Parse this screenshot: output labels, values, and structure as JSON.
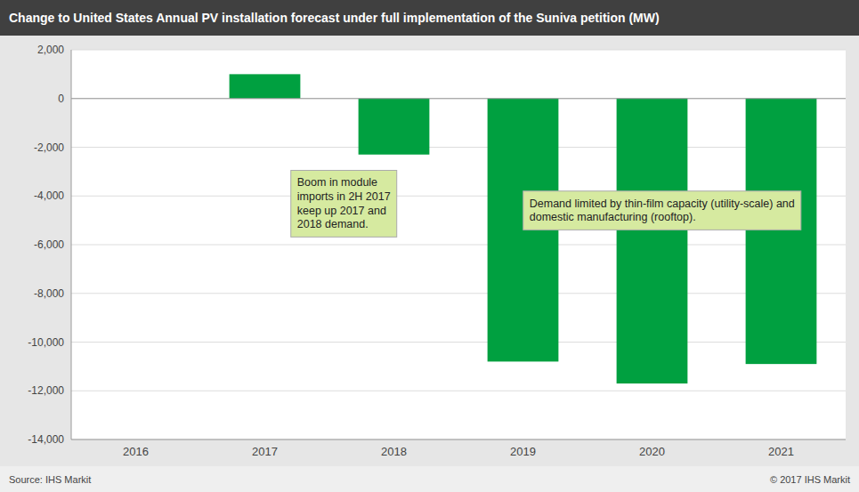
{
  "chart_data": {
    "type": "bar",
    "title": "Change to United States Annual PV installation forecast under full implementation of the Suniva petition (MW)",
    "categories": [
      "2016",
      "2017",
      "2018",
      "2019",
      "2020",
      "2021"
    ],
    "values": [
      0,
      1000,
      -2300,
      -10800,
      -11700,
      -10900
    ],
    "color": "#00a040",
    "ylim": [
      -14000,
      2000
    ],
    "yticks": [
      {
        "value": -14000,
        "label": "-14,000"
      },
      {
        "value": -12000,
        "label": "-12,000"
      },
      {
        "value": -10000,
        "label": "-10,000"
      },
      {
        "value": -8000,
        "label": "-8,000"
      },
      {
        "value": -6000,
        "label": "-6,000"
      },
      {
        "value": -4000,
        "label": "-4,000"
      },
      {
        "value": -2000,
        "label": "-2,000"
      },
      0,
      {
        "value": 2000,
        "label": "2,000"
      }
    ],
    "grid": true,
    "annotations": [
      "Boom in module\nimports in 2H 2017\nkeep up 2017 and\n2018 demand.",
      "Demand limited by thin-film capacity (utility-scale) and\ndomestic manufacturing (rooftop)."
    ],
    "source": "Source: IHS Markit",
    "copyright": "© 2017 IHS Markit"
  }
}
